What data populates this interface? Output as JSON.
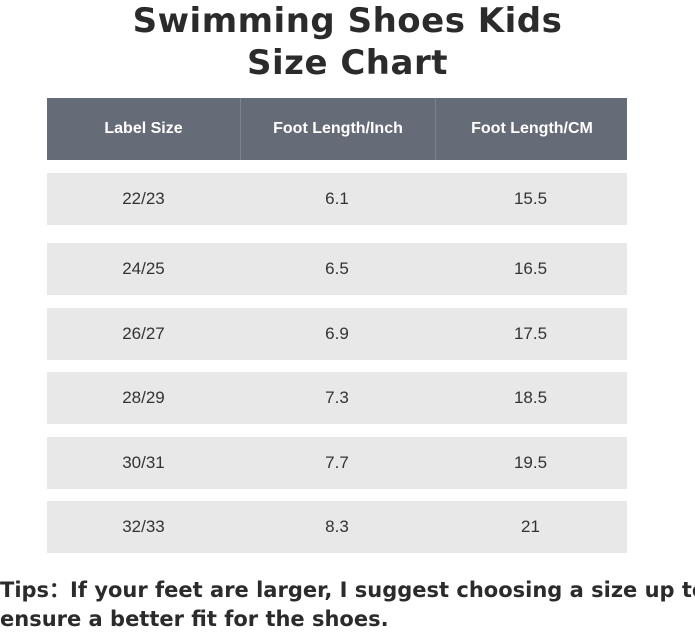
{
  "title": {
    "line1": "Swimming Shoes Kids",
    "line2": "Size Chart"
  },
  "table": {
    "headers": [
      "Label Size",
      "Foot Length/Inch",
      "Foot Length/CM"
    ],
    "rows": [
      [
        "22/23",
        "6.1",
        "15.5"
      ],
      [
        "24/25",
        "6.5",
        "16.5"
      ],
      [
        "26/27",
        "6.9",
        "17.5"
      ],
      [
        "28/29",
        "7.3",
        "18.5"
      ],
      [
        "30/31",
        "7.7",
        "19.5"
      ],
      [
        "32/33",
        "8.3",
        "21"
      ]
    ]
  },
  "tips": {
    "line1": "Tips：If your feet are larger, I suggest choosing a size up to",
    "line2": "ensure a better fit for the shoes."
  },
  "colors": {
    "header_bg": "#666b78",
    "row_bg": "#e8e8e8",
    "text": "#333333"
  }
}
